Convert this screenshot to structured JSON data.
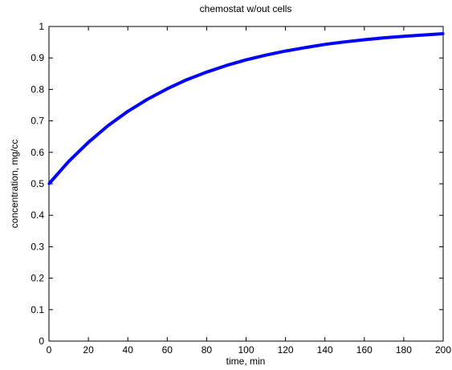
{
  "chart_data": {
    "type": "line",
    "title": "chemostat w/out cells",
    "xlabel": "time, min",
    "ylabel": "concentration, mg/cc",
    "xlim": [
      0,
      200
    ],
    "ylim": [
      0,
      1
    ],
    "grid": false,
    "xticks": [
      "0",
      "20",
      "40",
      "60",
      "80",
      "100",
      "120",
      "140",
      "160",
      "180",
      "200"
    ],
    "yticks": [
      "0",
      "0.1",
      "0.2",
      "0.3",
      "0.4",
      "0.5",
      "0.6",
      "0.7",
      "0.8",
      "0.9",
      "1"
    ],
    "series": [
      {
        "color": "#0000ff",
        "x": [
          0,
          10,
          20,
          30,
          40,
          50,
          60,
          70,
          80,
          90,
          100,
          110,
          120,
          130,
          140,
          150,
          160,
          170,
          180,
          190,
          200
        ],
        "y": [
          0.5,
          0.571,
          0.632,
          0.685,
          0.73,
          0.769,
          0.802,
          0.831,
          0.855,
          0.876,
          0.894,
          0.909,
          0.922,
          0.933,
          0.943,
          0.951,
          0.958,
          0.964,
          0.969,
          0.973,
          0.977
        ]
      }
    ]
  }
}
